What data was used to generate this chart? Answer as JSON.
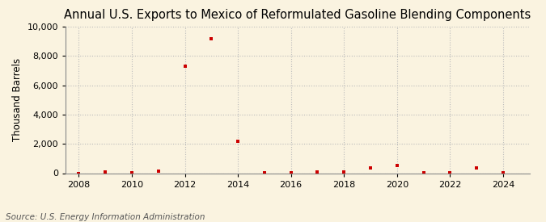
{
  "title": "Annual U.S. Exports to Mexico of Reformulated Gasoline Blending Components",
  "ylabel": "Thousand Barrels",
  "source": "Source: U.S. Energy Information Administration",
  "years": [
    2008,
    2009,
    2010,
    2011,
    2012,
    2013,
    2014,
    2015,
    2016,
    2017,
    2018,
    2019,
    2020,
    2021,
    2022,
    2023,
    2024
  ],
  "values": [
    0,
    100,
    50,
    150,
    7300,
    9200,
    2150,
    50,
    30,
    100,
    80,
    350,
    500,
    50,
    30,
    350,
    30
  ],
  "xlim": [
    2007.5,
    2025.0
  ],
  "ylim": [
    0,
    10000
  ],
  "yticks": [
    0,
    2000,
    4000,
    6000,
    8000,
    10000
  ],
  "xticks": [
    2008,
    2010,
    2012,
    2014,
    2016,
    2018,
    2020,
    2022,
    2024
  ],
  "marker_color": "#cc0000",
  "marker": "s",
  "marker_size": 3.5,
  "background_color": "#faf3e0",
  "grid_color": "#bbbbbb",
  "title_fontsize": 10.5,
  "label_fontsize": 8.5,
  "tick_fontsize": 8,
  "source_fontsize": 7.5
}
